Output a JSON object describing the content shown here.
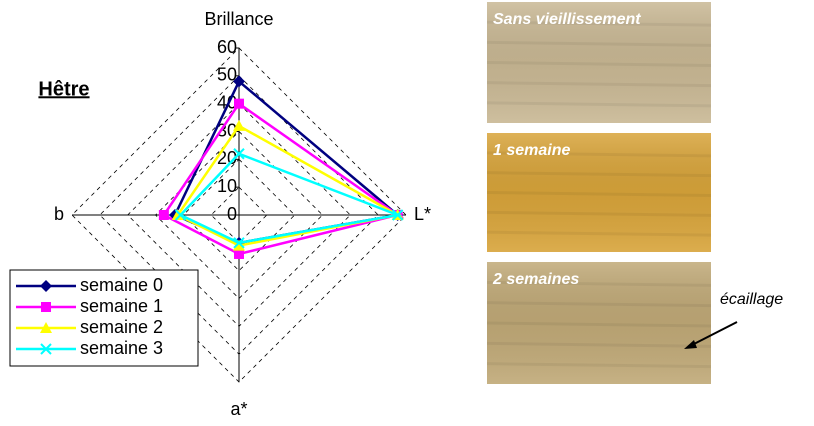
{
  "chart_data": {
    "type": "radar",
    "title": "Hêtre",
    "axes": [
      "Brillance",
      "L*",
      "a*",
      "b"
    ],
    "rlim": [
      0,
      60
    ],
    "rticks": [
      0,
      10,
      20,
      30,
      40,
      50,
      60
    ],
    "grid": true,
    "series": [
      {
        "name": "semaine 0",
        "color": "#000080",
        "marker": "diamond",
        "values": [
          48,
          57,
          10,
          23
        ]
      },
      {
        "name": "semaine 1",
        "color": "#ff00ff",
        "marker": "square",
        "values": [
          40,
          57,
          14,
          27
        ]
      },
      {
        "name": "semaine 2",
        "color": "#ffff00",
        "marker": "triangle",
        "values": [
          32,
          57,
          11,
          22
        ]
      },
      {
        "name": "semaine 3",
        "color": "#00ffff",
        "marker": "x",
        "values": [
          22,
          57,
          10,
          21
        ]
      }
    ]
  },
  "photos": [
    {
      "label": "Sans vieillissement",
      "color": "#c9b894"
    },
    {
      "label": "1 semaine",
      "color": "#d8a43a"
    },
    {
      "label": "2 semaines",
      "color": "#c0a977"
    }
  ],
  "annotation": "écaillage"
}
